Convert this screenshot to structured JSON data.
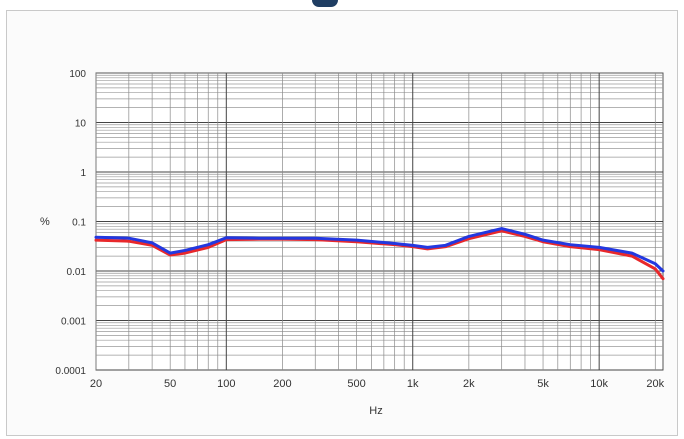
{
  "chart_data": {
    "type": "line",
    "title": "",
    "xlabel": "Hz",
    "ylabel": "%",
    "x_scale": "log",
    "y_scale": "log",
    "xlim": [
      20,
      22000
    ],
    "ylim": [
      0.0001,
      100
    ],
    "grid": true,
    "legend": "none",
    "x_ticks": [
      {
        "value": 20,
        "label": "20"
      },
      {
        "value": 50,
        "label": "50"
      },
      {
        "value": 100,
        "label": "100"
      },
      {
        "value": 200,
        "label": "200"
      },
      {
        "value": 500,
        "label": "500"
      },
      {
        "value": 1000,
        "label": "1k"
      },
      {
        "value": 2000,
        "label": "2k"
      },
      {
        "value": 5000,
        "label": "5k"
      },
      {
        "value": 10000,
        "label": "10k"
      },
      {
        "value": 20000,
        "label": "20k"
      }
    ],
    "y_ticks": [
      {
        "value": 100,
        "label": "100"
      },
      {
        "value": 10,
        "label": "10"
      },
      {
        "value": 1,
        "label": "1"
      },
      {
        "value": 0.1,
        "label": "0.1"
      },
      {
        "value": 0.01,
        "label": "0.01"
      },
      {
        "value": 0.001,
        "label": "0.001"
      },
      {
        "value": 0.0001,
        "label": "0.0001"
      }
    ],
    "series": [
      {
        "color": "#e8282b",
        "points": [
          [
            20,
            0.042
          ],
          [
            30,
            0.04
          ],
          [
            40,
            0.033
          ],
          [
            50,
            0.021
          ],
          [
            60,
            0.023
          ],
          [
            80,
            0.03
          ],
          [
            100,
            0.043
          ],
          [
            150,
            0.044
          ],
          [
            200,
            0.044
          ],
          [
            300,
            0.043
          ],
          [
            500,
            0.039
          ],
          [
            800,
            0.034
          ],
          [
            1000,
            0.031
          ],
          [
            1200,
            0.028
          ],
          [
            1500,
            0.031
          ],
          [
            2000,
            0.045
          ],
          [
            3000,
            0.065
          ],
          [
            4000,
            0.05
          ],
          [
            5000,
            0.039
          ],
          [
            7000,
            0.031
          ],
          [
            10000,
            0.027
          ],
          [
            15000,
            0.02
          ],
          [
            20000,
            0.011
          ],
          [
            22000,
            0.007
          ]
        ]
      },
      {
        "color": "#2338e0",
        "points": [
          [
            20,
            0.048
          ],
          [
            30,
            0.046
          ],
          [
            40,
            0.037
          ],
          [
            50,
            0.023
          ],
          [
            60,
            0.026
          ],
          [
            80,
            0.034
          ],
          [
            100,
            0.047
          ],
          [
            150,
            0.046
          ],
          [
            200,
            0.046
          ],
          [
            300,
            0.046
          ],
          [
            500,
            0.042
          ],
          [
            800,
            0.036
          ],
          [
            1000,
            0.033
          ],
          [
            1200,
            0.03
          ],
          [
            1500,
            0.033
          ],
          [
            2000,
            0.05
          ],
          [
            3000,
            0.072
          ],
          [
            4000,
            0.055
          ],
          [
            5000,
            0.042
          ],
          [
            7000,
            0.034
          ],
          [
            10000,
            0.03
          ],
          [
            15000,
            0.023
          ],
          [
            20000,
            0.014
          ],
          [
            22000,
            0.01
          ]
        ]
      }
    ]
  }
}
